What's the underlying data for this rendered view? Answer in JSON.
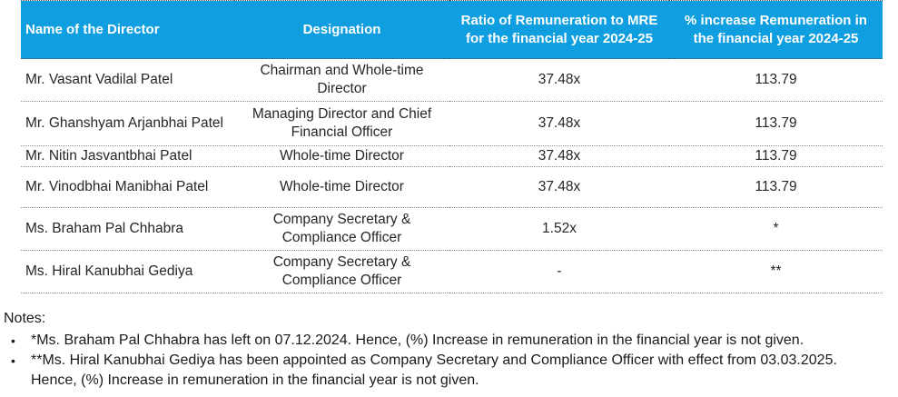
{
  "table": {
    "columns": [
      "Name of the Director",
      "Designation",
      "Ratio of Remuneration to MRE for the financial year 2024-25",
      "% increase Remuneration in the financial year 2024-25"
    ],
    "rows": [
      {
        "name": "Mr. Vasant Vadilal Patel",
        "designation": "Chairman and Whole-time Director",
        "ratio": "37.48x",
        "increase": "113.79"
      },
      {
        "name": "Mr. Ghanshyam Arjanbhai Patel",
        "designation": "Managing Director and Chief Financial Officer",
        "ratio": "37.48x",
        "increase": "113.79"
      },
      {
        "name": "Mr. Nitin Jasvantbhai Patel",
        "designation": "Whole-time Director",
        "ratio": "37.48x",
        "increase": "113.79"
      },
      {
        "name": "Mr. Vinodbhai Manibhai Patel",
        "designation": "Whole-time Director",
        "ratio": "37.48x",
        "increase": "113.79"
      },
      {
        "name": "Ms. Braham Pal Chhabra",
        "designation": "Company Secretary & Compliance Officer",
        "ratio": "1.52x",
        "increase": "*"
      },
      {
        "name": "Ms. Hiral Kanubhai Gediya",
        "designation": "Company Secretary & Compliance Officer",
        "ratio": "-",
        "increase": "**"
      }
    ]
  },
  "notes": {
    "heading": "Notes:",
    "bullet": "•",
    "items": [
      "*Ms. Braham Pal Chhabra has left on 07.12.2024. Hence, (%) Increase in remuneration in the financial year is not given.",
      "**Ms. Hiral Kanubhai Gediya has been appointed as Company Secretary and Compliance Officer with effect from 03.03.2025. Hence, (%) Increase in remuneration in the financial year is not given."
    ]
  },
  "colors": {
    "header_bg": "#0f9ee0",
    "header_text": "#ffffff",
    "body_text": "#262626",
    "row_separator": "#8f8f8f"
  }
}
